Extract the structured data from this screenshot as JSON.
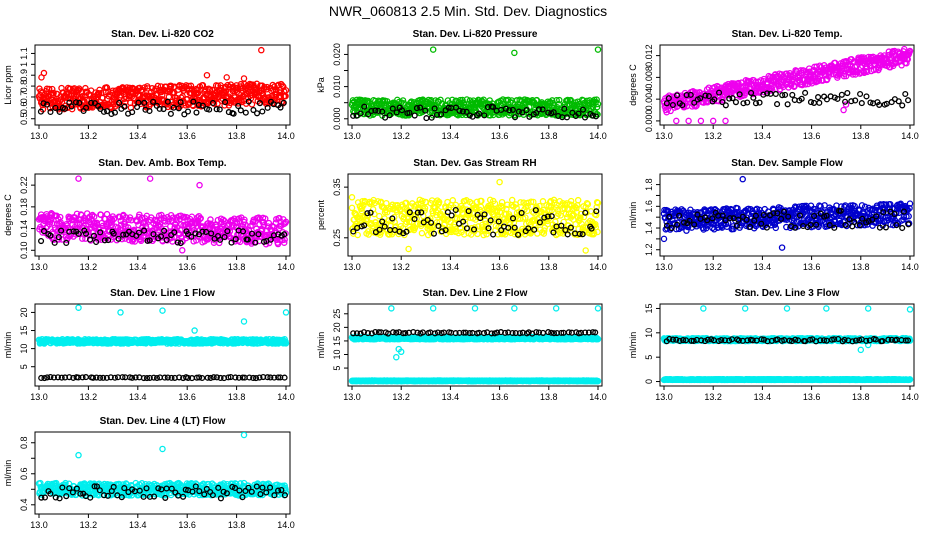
{
  "page_title": "NWR_060813  2.5 Min. Std. Dev. Diagnostics",
  "chart_data": [
    {
      "id": "co2",
      "type": "scatter",
      "title": "Stan. Dev. Li-820 CO2",
      "ylabel": "Licor ppm",
      "xlim": [
        13.0,
        14.0
      ],
      "ylim": [
        0.47,
        1.15
      ],
      "xticks": [
        13.0,
        13.2,
        13.4,
        13.6,
        13.8,
        14.0
      ],
      "yticks": [
        0.5,
        0.6,
        0.7,
        0.8,
        0.9,
        1.0,
        1.1
      ],
      "ytick_labels": [
        "0.5",
        "0.6",
        "0.7",
        "0.8",
        "0.9",
        "1",
        "1.1"
      ],
      "color": "#ff0000",
      "main_base": 0.68,
      "main_spread": 0.1,
      "main_trend": 0.05,
      "ref_base": 0.6,
      "ref_spread": 0.06,
      "outliers": [
        [
          13.02,
          0.92
        ],
        [
          13.01,
          0.88
        ],
        [
          13.9,
          1.13
        ],
        [
          13.68,
          0.9
        ],
        [
          13.76,
          0.88
        ],
        [
          13.83,
          0.87
        ]
      ]
    },
    {
      "id": "pressure",
      "type": "scatter",
      "title": "Stan. Dev. Li-820 Pressure",
      "ylabel": "kPa",
      "xlim": [
        13.0,
        14.0
      ],
      "ylim": [
        -0.001,
        0.022
      ],
      "xticks": [
        13.0,
        13.2,
        13.4,
        13.6,
        13.8,
        14.0
      ],
      "yticks": [
        0.0,
        0.005,
        0.01,
        0.015,
        0.02
      ],
      "ytick_labels": [
        "0.000",
        "",
        "0.010",
        "",
        "0.020"
      ],
      "color": "#00bb00",
      "main_base": 0.0035,
      "main_spread": 0.0025,
      "main_trend": 0,
      "ref_base": 0.002,
      "ref_spread": 0.0018,
      "outliers": [
        [
          13.33,
          0.0215
        ],
        [
          13.66,
          0.0205
        ],
        [
          14.0,
          0.0215
        ]
      ]
    },
    {
      "id": "temp",
      "type": "scatter",
      "title": "Stan. Dev. Li-820 Temp.",
      "ylabel": "degrees C",
      "xlim": [
        13.0,
        14.0
      ],
      "ylim": [
        -0.0002,
        0.0134
      ],
      "xticks": [
        13.0,
        13.2,
        13.4,
        13.6,
        13.8,
        14.0
      ],
      "yticks": [
        0.0,
        0.004,
        0.008,
        0.012
      ],
      "ytick_labels": [
        "0.000",
        "0.004",
        "0.008",
        "0.012"
      ],
      "color": "#ee00ee",
      "main_base": 0.003,
      "main_spread": 0.0015,
      "main_trend": 0.009,
      "ref_base": 0.004,
      "ref_spread": 0.0012,
      "outliers": [
        [
          13.05,
          0.0
        ],
        [
          13.1,
          0.0
        ],
        [
          13.15,
          0.0
        ],
        [
          13.2,
          0.0
        ],
        [
          13.25,
          0.0
        ],
        [
          13.73,
          0.002
        ],
        [
          13.74,
          0.003
        ]
      ]
    },
    {
      "id": "ambbox",
      "type": "scatter",
      "title": "Stan. Dev. Amb. Box Temp.",
      "ylabel": "degrees C",
      "xlim": [
        13.0,
        14.0
      ],
      "ylim": [
        0.095,
        0.235
      ],
      "xticks": [
        13.0,
        13.2,
        13.4,
        13.6,
        13.8,
        14.0
      ],
      "yticks": [
        0.1,
        0.14,
        0.18,
        0.22
      ],
      "ytick_labels": [
        "0.10",
        "0.14",
        "0.18",
        "0.22"
      ],
      "color": "#ee00ee",
      "main_base": 0.145,
      "main_spread": 0.025,
      "main_trend": -0.01,
      "ref_base": 0.125,
      "ref_spread": 0.012,
      "outliers": [
        [
          13.16,
          0.232
        ],
        [
          13.45,
          0.232
        ],
        [
          13.65,
          0.22
        ],
        [
          13.58,
          0.1
        ]
      ]
    },
    {
      "id": "rh",
      "type": "scatter",
      "title": "Stan. Dev. Gas Stream RH",
      "ylabel": "percent",
      "xlim": [
        13.0,
        14.0
      ],
      "ylim": [
        0.22,
        0.37
      ],
      "xticks": [
        13.0,
        13.2,
        13.4,
        13.6,
        13.8,
        14.0
      ],
      "yticks": [
        0.25,
        0.35
      ],
      "ytick_labels": [
        "0.25",
        "0.35"
      ],
      "color": "#ffff00",
      "main_base": 0.29,
      "main_spread": 0.035,
      "main_trend": 0,
      "ref_base": 0.28,
      "ref_spread": 0.025,
      "outliers": [
        [
          13.0,
          0.33
        ],
        [
          13.6,
          0.36
        ],
        [
          13.23,
          0.228
        ],
        [
          13.95,
          0.225
        ]
      ]
    },
    {
      "id": "sample",
      "type": "scatter",
      "title": "Stan. Dev. Sample Flow",
      "ylabel": "ml/min",
      "xlim": [
        13.0,
        14.0
      ],
      "ylim": [
        1.17,
        1.87
      ],
      "xticks": [
        13.0,
        13.2,
        13.4,
        13.6,
        13.8,
        14.0
      ],
      "yticks": [
        1.2,
        1.3,
        1.4,
        1.5,
        1.6,
        1.7,
        1.8
      ],
      "ytick_labels": [
        "1.2",
        "",
        "1.4",
        "",
        "1.6",
        "",
        "1.8"
      ],
      "color": "#0000cc",
      "main_base": 1.47,
      "main_spread": 0.1,
      "main_trend": 0.06,
      "ref_base": 1.48,
      "ref_spread": 0.08,
      "outliers": [
        [
          13.32,
          1.85
        ],
        [
          13.48,
          1.22
        ],
        [
          13.0,
          1.3
        ]
      ]
    },
    {
      "id": "line1",
      "type": "scatter",
      "title": "Stan. Dev. Line 1 Flow",
      "ylabel": "ml/min",
      "xlim": [
        13.0,
        14.0
      ],
      "ylim": [
        0.5,
        21.5
      ],
      "xticks": [
        13.0,
        13.2,
        13.4,
        13.6,
        13.8,
        14.0
      ],
      "yticks": [
        5,
        10,
        15,
        20
      ],
      "ytick_labels": [
        "5",
        "10",
        "15",
        "20"
      ],
      "color": "#00eeee",
      "main_base": 12,
      "main_spread": 0.6,
      "main_trend": 0,
      "ref_base": 2,
      "ref_spread": 0.15,
      "outliers": [
        [
          13.16,
          21.3
        ],
        [
          13.33,
          20.0
        ],
        [
          13.5,
          20.5
        ],
        [
          13.83,
          17.5
        ],
        [
          14.0,
          20.0
        ],
        [
          13.63,
          15.0
        ]
      ]
    },
    {
      "id": "line2",
      "type": "scatter",
      "title": "Stan. Dev. Line 2 Flow",
      "ylabel": "ml/min",
      "xlim": [
        13.0,
        14.0
      ],
      "ylim": [
        -0.5,
        27.5
      ],
      "xticks": [
        13.0,
        13.2,
        13.4,
        13.6,
        13.8,
        14.0
      ],
      "yticks": [
        5,
        10,
        15,
        20,
        25
      ],
      "ytick_labels": [
        "5",
        "10",
        "15",
        "20",
        "25"
      ],
      "color": "#00eeee",
      "main_base": 16,
      "main_spread": 0.4,
      "main_trend": 0,
      "ref_base": 18,
      "ref_spread": 0.3,
      "second_band": 0.3,
      "outliers": [
        [
          13.16,
          27.0
        ],
        [
          13.33,
          27.0
        ],
        [
          13.5,
          27.0
        ],
        [
          13.66,
          27.0
        ],
        [
          13.83,
          27.0
        ],
        [
          14.0,
          27.0
        ],
        [
          13.18,
          9.0
        ],
        [
          13.19,
          12.0
        ],
        [
          13.2,
          11.0
        ]
      ]
    },
    {
      "id": "line3",
      "type": "scatter",
      "title": "Stan. Dev. Line 3 Flow",
      "ylabel": "ml/min",
      "xlim": [
        13.0,
        14.0
      ],
      "ylim": [
        -0.3,
        15.3
      ],
      "xticks": [
        13.0,
        13.2,
        13.4,
        13.6,
        13.8,
        14.0
      ],
      "yticks": [
        0,
        5,
        10,
        15
      ],
      "ytick_labels": [
        "0",
        "5",
        "10",
        "15"
      ],
      "color": "#00eeee",
      "main_base": 8.6,
      "main_spread": 0.3,
      "main_trend": 0,
      "ref_base": 8.5,
      "ref_spread": 0.25,
      "second_band": 0.4,
      "outliers": [
        [
          13.16,
          15.0
        ],
        [
          13.33,
          15.0
        ],
        [
          13.5,
          15.0
        ],
        [
          13.66,
          15.0
        ],
        [
          13.83,
          15.0
        ],
        [
          14.0,
          14.8
        ],
        [
          13.8,
          6.5
        ],
        [
          13.83,
          7.5
        ]
      ]
    },
    {
      "id": "line4",
      "type": "scatter",
      "title": "Stan. Dev. Line 4 (LT) Flow",
      "ylabel": "ml/min",
      "xlim": [
        13.0,
        14.0
      ],
      "ylim": [
        0.36,
        0.85
      ],
      "xticks": [
        13.0,
        13.2,
        13.4,
        13.6,
        13.8,
        14.0
      ],
      "yticks": [
        0.4,
        0.5,
        0.6,
        0.7,
        0.8
      ],
      "ytick_labels": [
        "0.4",
        "",
        "0.6",
        "",
        "0.8"
      ],
      "color": "#00eeee",
      "main_base": 0.5,
      "main_spread": 0.04,
      "main_trend": 0,
      "ref_base": 0.48,
      "ref_spread": 0.04,
      "outliers": [
        [
          13.16,
          0.72
        ],
        [
          13.5,
          0.76
        ],
        [
          13.83,
          0.85
        ]
      ]
    }
  ]
}
